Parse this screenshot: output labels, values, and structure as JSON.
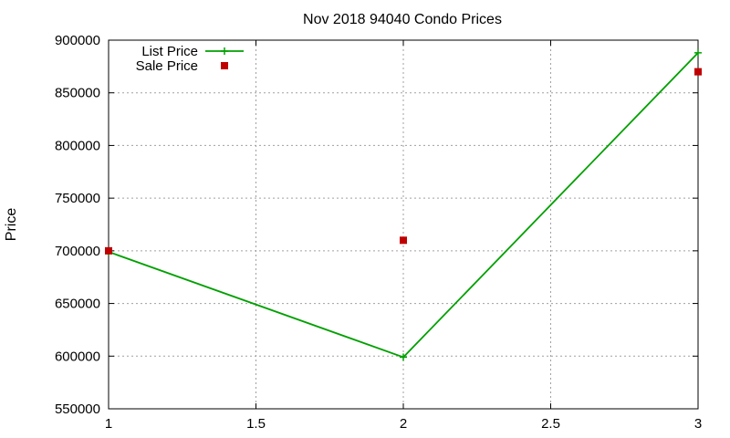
{
  "chart_data": {
    "type": "line",
    "title": "Nov 2018 94040 Condo Prices",
    "xlabel": "",
    "ylabel": "Price",
    "xlim": [
      1,
      3
    ],
    "ylim": [
      550000,
      900000
    ],
    "xticks": [
      1,
      1.5,
      2,
      2.5,
      3
    ],
    "xtick_labels": [
      "1",
      "1.5",
      "2",
      "2.5",
      "3"
    ],
    "yticks": [
      550000,
      600000,
      650000,
      700000,
      750000,
      800000,
      850000,
      900000
    ],
    "ytick_labels": [
      "550000",
      "600000",
      "650000",
      "700000",
      "750000",
      "800000",
      "850000",
      "900000"
    ],
    "grid": true,
    "legend_position": "top-left",
    "series": [
      {
        "name": "List Price",
        "kind": "line-points",
        "marker": "plus",
        "color": "#00a000",
        "x": [
          1,
          2,
          3
        ],
        "y": [
          699000,
          599000,
          888000
        ]
      },
      {
        "name": "Sale Price",
        "kind": "points",
        "marker": "square",
        "color": "#c00000",
        "x": [
          1,
          2,
          3
        ],
        "y": [
          700000,
          710000,
          870000
        ]
      }
    ]
  }
}
